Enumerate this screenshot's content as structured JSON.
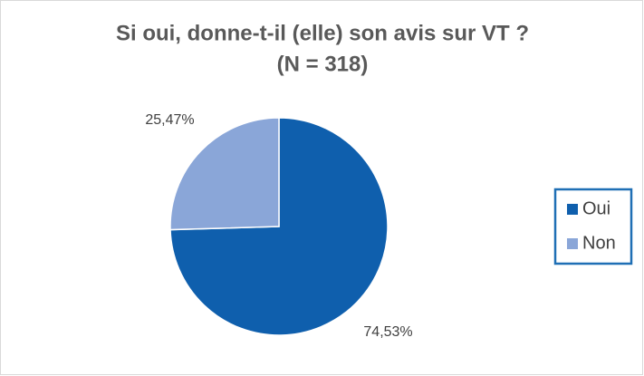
{
  "chart_data": {
    "type": "pie",
    "title": "Si oui, donne-t-il (elle) son avis sur VT ?",
    "subtitle": "(N = 318)",
    "categories": [
      "Oui",
      "Non"
    ],
    "values": [
      74.53,
      25.47
    ],
    "value_labels": [
      "74,53%",
      "25,47%"
    ],
    "colors": [
      "#0f5fad",
      "#8aa6d8"
    ],
    "legend": "right"
  }
}
